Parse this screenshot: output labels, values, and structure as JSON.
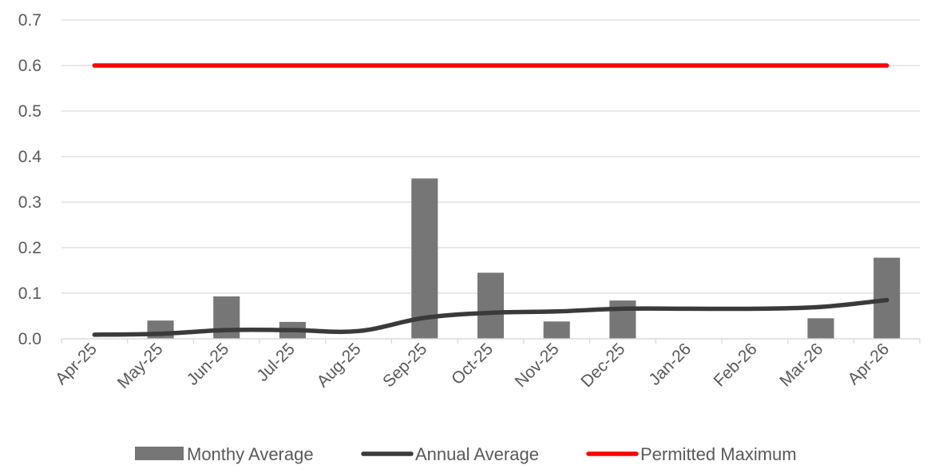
{
  "chart_data": {
    "type": "bar",
    "categories": [
      "Apr-25",
      "May-25",
      "Jun-25",
      "Jul-25",
      "Aug-25",
      "Sep-25",
      "Oct-25",
      "Nov-25",
      "Dec-25",
      "Jan-26",
      "Feb-26",
      "Mar-26",
      "Apr-26"
    ],
    "series": [
      {
        "name": "Monthy Average",
        "type": "bar",
        "color": "#767676",
        "values": [
          null,
          0.04,
          0.093,
          0.037,
          null,
          0.352,
          0.145,
          0.038,
          0.084,
          null,
          null,
          0.045,
          0.178
        ]
      },
      {
        "name": "Annual Average",
        "type": "line",
        "color": "#3a3a3a",
        "values": [
          0.009,
          0.011,
          0.019,
          0.019,
          0.017,
          0.046,
          0.057,
          0.06,
          0.066,
          0.066,
          0.066,
          0.07,
          0.085
        ]
      },
      {
        "name": "Permitted Maximum",
        "type": "line",
        "color": "#ff0000",
        "values": [
          0.6,
          0.6,
          0.6,
          0.6,
          0.6,
          0.6,
          0.6,
          0.6,
          0.6,
          0.6,
          0.6,
          0.6,
          0.6
        ]
      }
    ],
    "y_ticks": [
      "0.0",
      "0.1",
      "0.2",
      "0.3",
      "0.4",
      "0.5",
      "0.6",
      "0.7"
    ],
    "ylim": [
      0,
      0.7
    ],
    "grid": "horizontal",
    "legend_position": "bottom",
    "title": "",
    "xlabel": "",
    "ylabel": ""
  }
}
